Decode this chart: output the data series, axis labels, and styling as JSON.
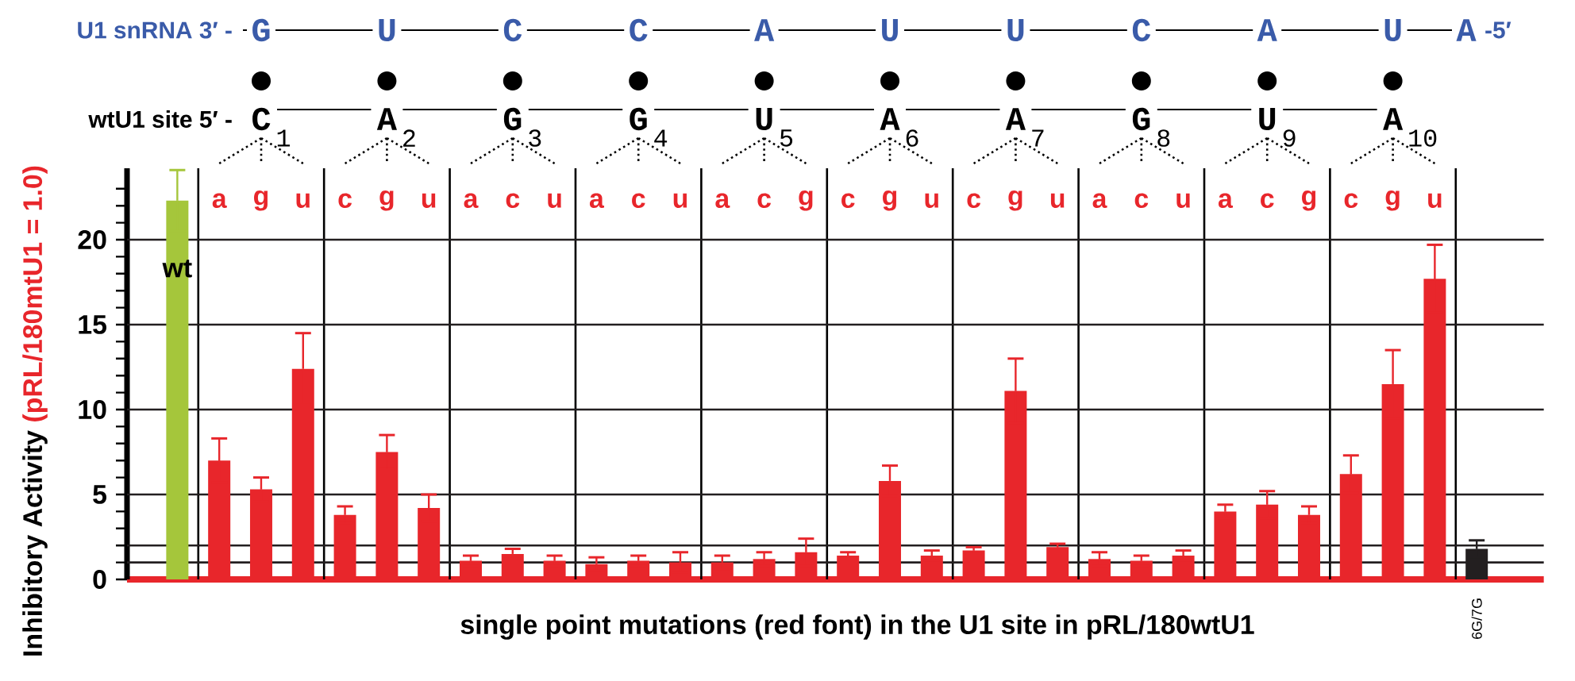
{
  "chart_data": {
    "type": "bar",
    "xlabel": "single point mutations (red font) in the U1 site in pRL/180wtU1",
    "ylabel": "Inhibitory Activity",
    "categories": [
      "wt",
      "a",
      "g",
      "u",
      "c",
      "g",
      "u",
      "a",
      "c",
      "u",
      "a",
      "c",
      "u",
      "a",
      "c",
      "g",
      "c",
      "g",
      "u",
      "c",
      "g",
      "u",
      "a",
      "c",
      "u",
      "a",
      "c",
      "g",
      "c",
      "g",
      "u",
      "6G/7G"
    ],
    "values": [
      22.3,
      7.0,
      5.3,
      12.4,
      3.8,
      7.5,
      4.2,
      1.1,
      1.5,
      1.1,
      0.9,
      1.1,
      1.0,
      1.0,
      1.2,
      1.6,
      1.4,
      5.8,
      1.4,
      1.7,
      11.1,
      1.9,
      1.2,
      1.1,
      1.4,
      4.0,
      4.4,
      3.8,
      6.2,
      11.5,
      17.7,
      1.8
    ],
    "errors": [
      1.8,
      1.3,
      0.7,
      2.1,
      0.5,
      1.0,
      0.8,
      0.3,
      0.3,
      0.3,
      0.4,
      0.3,
      0.6,
      0.4,
      0.4,
      0.8,
      0.2,
      0.9,
      0.3,
      0.2,
      1.9,
      0.2,
      0.4,
      0.3,
      0.3,
      0.4,
      0.8,
      0.5,
      1.1,
      2.0,
      2.0,
      0.5
    ],
    "colors": [
      "#a5c63b",
      "#e8262b",
      "#e8262b",
      "#e8262b",
      "#e8262b",
      "#e8262b",
      "#e8262b",
      "#e8262b",
      "#e8262b",
      "#e8262b",
      "#e8262b",
      "#e8262b",
      "#e8262b",
      "#e8262b",
      "#e8262b",
      "#e8262b",
      "#e8262b",
      "#e8262b",
      "#e8262b",
      "#e8262b",
      "#e8262b",
      "#e8262b",
      "#e8262b",
      "#e8262b",
      "#e8262b",
      "#e8262b",
      "#e8262b",
      "#e8262b",
      "#e8262b",
      "#e8262b",
      "#e8262b",
      "#231f20"
    ],
    "ylim": [
      0,
      24.2
    ],
    "yticks": [
      0,
      {
        "value": 1,
        "label": null
      },
      {
        "value": 2,
        "label": null
      },
      {
        "value": 3,
        "label": null
      },
      {
        "value": 4,
        "label": null
      },
      5,
      {
        "value": 6,
        "label": null
      },
      {
        "value": 7,
        "label": null
      },
      {
        "value": 8,
        "label": null
      },
      {
        "value": 9,
        "label": null
      },
      10,
      {
        "value": 11,
        "label": null
      },
      {
        "value": 12,
        "label": null
      },
      {
        "value": 13,
        "label": null
      },
      {
        "value": 14,
        "label": null
      },
      15,
      {
        "value": 16,
        "label": null
      },
      {
        "value": 17,
        "label": null
      },
      {
        "value": 18,
        "label": null
      },
      {
        "value": 19,
        "label": null
      },
      20,
      {
        "value": 21,
        "label": null
      },
      {
        "value": 22,
        "label": null
      },
      {
        "value": 23,
        "label": null
      }
    ],
    "ref_lines": [
      {
        "axis": "y",
        "value": 1,
        "color": "#231f20"
      },
      {
        "axis": "y",
        "value": 2,
        "color": "#231f20"
      },
      {
        "axis": "y",
        "value": 5,
        "color": "#231f20"
      },
      {
        "axis": "y",
        "value": 10,
        "color": "#231f20"
      },
      {
        "axis": "y",
        "value": 15,
        "color": "#231f20"
      },
      {
        "axis": "y",
        "value": 20,
        "color": "#231f20"
      }
    ],
    "annotations": [
      "U1 snRNA 3′ -",
      "G",
      "U",
      "C",
      "C",
      "A",
      "U",
      "U",
      "C",
      "A",
      "U",
      "A",
      "-5′",
      "wtU1 site 5′ -",
      "C",
      "A",
      "G",
      "G",
      "U",
      "A",
      "A",
      "G",
      "U",
      "A",
      "1",
      "2",
      "3",
      "4",
      "5",
      "6",
      "7",
      "8",
      "9",
      "10",
      "(pRL/180mtU1 = 1.0)"
    ]
  }
}
